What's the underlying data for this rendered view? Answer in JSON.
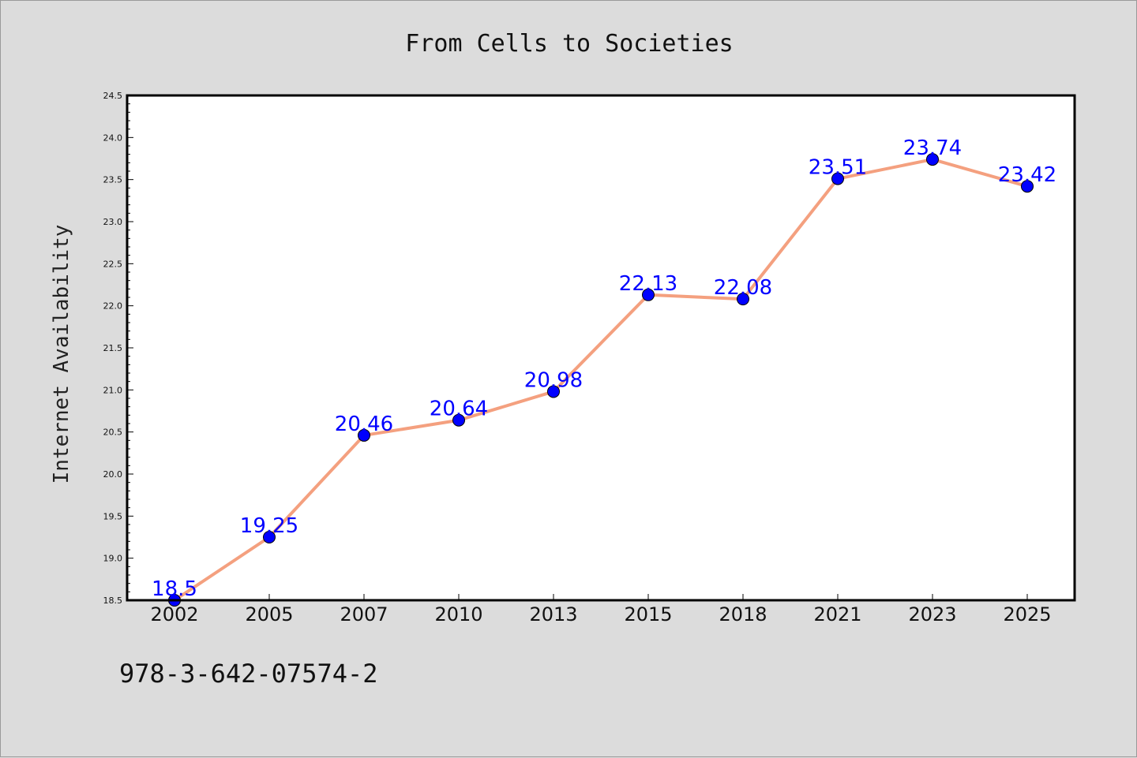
{
  "chart_data": {
    "type": "line",
    "title": "From Cells to Societies",
    "xlabel": "",
    "ylabel": "Internet Availability",
    "categories": [
      "2002",
      "2005",
      "2007",
      "2010",
      "2013",
      "2015",
      "2018",
      "2021",
      "2023",
      "2025"
    ],
    "series": [
      {
        "values": [
          18.5,
          19.25,
          20.46,
          20.64,
          20.98,
          22.13,
          22.08,
          23.51,
          23.74,
          23.42
        ],
        "data_labels": [
          "18.5",
          "19.25",
          "20.46",
          "20.64",
          "20.98",
          "22.13",
          "22.08",
          "23.51",
          "23.74",
          "23.42"
        ],
        "line_color": "#f4a07f",
        "marker_color": "#0000ff"
      }
    ],
    "ylim": [
      18.5,
      24.5
    ],
    "yticks": [
      "18.5",
      "19.0",
      "19.5",
      "20.0",
      "20.5",
      "21.0",
      "21.5",
      "22.0",
      "22.5",
      "23.0",
      "23.5",
      "24.0",
      "24.5"
    ],
    "grid": false,
    "legend": "none"
  },
  "footnote": "978-3-642-07574-2",
  "colors": {
    "background": "#dcdcdc",
    "plot_background": "#ffffff",
    "label_color": "#0000ff"
  }
}
